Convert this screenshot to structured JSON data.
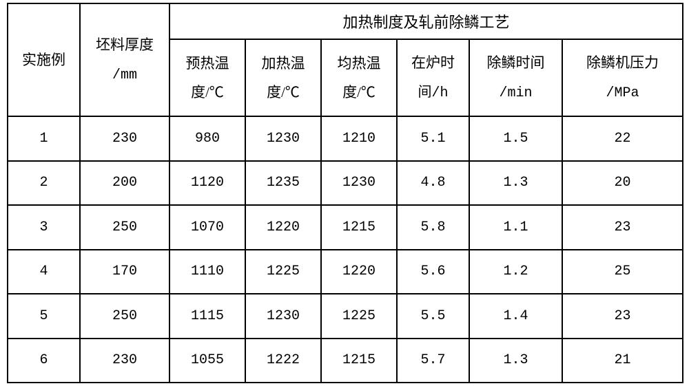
{
  "headers": {
    "col_example": "实施例",
    "col_thickness_l1": "坯料厚度",
    "col_thickness_l2": "/mm",
    "group_title": "加热制度及轧前除鳞工艺",
    "col_preheat_l1": "预热温",
    "col_preheat_l2": "度/℃",
    "col_heating_l1": "加热温",
    "col_heating_l2": "度/℃",
    "col_soaking_l1": "均热温",
    "col_soaking_l2": "度/℃",
    "col_furnace_l1": "在炉时",
    "col_furnace_l2": "间/h",
    "col_descale_time_l1": "除鳞时间",
    "col_descale_time_l2": "/min",
    "col_descale_press_l1": "除鳞机压力",
    "col_descale_press_l2": "/MPa"
  },
  "rows": [
    {
      "example": "1",
      "thickness": "230",
      "preheat": "980",
      "heating": "1230",
      "soaking": "1210",
      "furnace": "5.1",
      "descale_time": "1.5",
      "descale_press": "22"
    },
    {
      "example": "2",
      "thickness": "200",
      "preheat": "1120",
      "heating": "1235",
      "soaking": "1230",
      "furnace": "4.8",
      "descale_time": "1.3",
      "descale_press": "20"
    },
    {
      "example": "3",
      "thickness": "250",
      "preheat": "1070",
      "heating": "1220",
      "soaking": "1215",
      "furnace": "5.8",
      "descale_time": "1.1",
      "descale_press": "23"
    },
    {
      "example": "4",
      "thickness": "170",
      "preheat": "1110",
      "heating": "1225",
      "soaking": "1220",
      "furnace": "5.6",
      "descale_time": "1.2",
      "descale_press": "25"
    },
    {
      "example": "5",
      "thickness": "250",
      "preheat": "1115",
      "heating": "1230",
      "soaking": "1225",
      "furnace": "5.5",
      "descale_time": "1.4",
      "descale_press": "23"
    },
    {
      "example": "6",
      "thickness": "230",
      "preheat": "1055",
      "heating": "1222",
      "soaking": "1215",
      "furnace": "5.7",
      "descale_time": "1.3",
      "descale_press": "21"
    }
  ],
  "col_widths": [
    "105",
    "130",
    "110",
    "110",
    "110",
    "105",
    "135",
    "175"
  ],
  "styling": {
    "border_color": "#000000",
    "background_color": "#ffffff",
    "font_family_cjk": "SimSun",
    "font_family_num": "Courier New",
    "header_fontsize": 22,
    "cell_fontsize": 21,
    "line_height_multiline": 2.0
  }
}
